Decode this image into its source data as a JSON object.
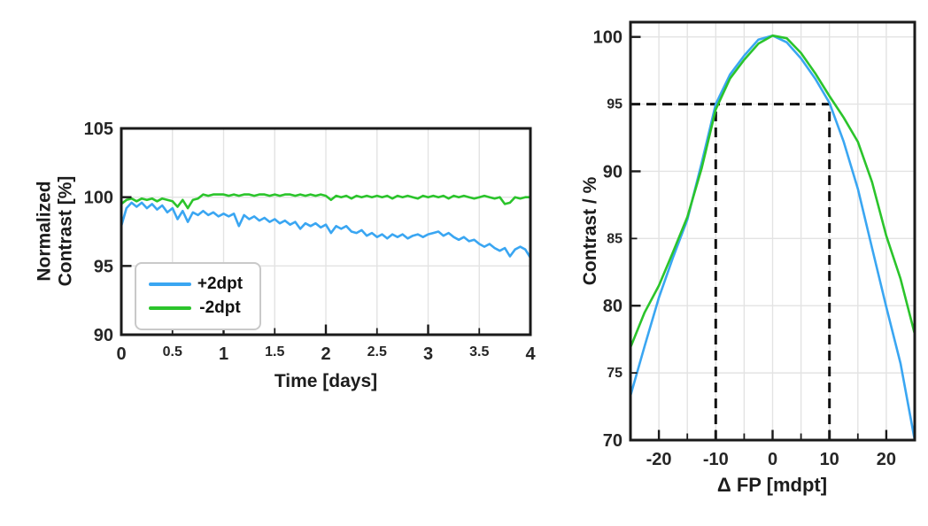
{
  "colors": {
    "blue": "#3aa6f2",
    "green": "#2bc42b",
    "grid": "#e3e3e3",
    "axis": "#1a1a1a",
    "tick_text": "#262626",
    "guide": "#111111",
    "background": "#ffffff"
  },
  "chart_data": [
    {
      "id": "left",
      "type": "line",
      "title": "",
      "xlabel": "Time [days]",
      "ylabel": "Normalized\nContrast [%]",
      "xlim": [
        0,
        4
      ],
      "ylim": [
        90,
        105
      ],
      "grid": true,
      "x_ticks": [
        {
          "v": 0,
          "l": "0",
          "m": true
        },
        {
          "v": 0.5,
          "l": "0.5",
          "m": false
        },
        {
          "v": 1,
          "l": "1",
          "m": true
        },
        {
          "v": 1.5,
          "l": "1.5",
          "m": false
        },
        {
          "v": 2,
          "l": "2",
          "m": true
        },
        {
          "v": 2.5,
          "l": "2.5",
          "m": false
        },
        {
          "v": 3,
          "l": "3",
          "m": true
        },
        {
          "v": 3.5,
          "l": "3.5",
          "m": false
        },
        {
          "v": 4,
          "l": "4",
          "m": true
        }
      ],
      "y_ticks": [
        {
          "v": 90,
          "l": "90",
          "m": true
        },
        {
          "v": 95,
          "l": "95",
          "m": true
        },
        {
          "v": 100,
          "l": "100",
          "m": true
        },
        {
          "v": 105,
          "l": "105",
          "m": true
        }
      ],
      "legend": {
        "position": "lower-left",
        "entries": [
          {
            "label": "+2dpt",
            "color": "#3aa6f2"
          },
          {
            "label": "-2dpt",
            "color": "#2bc42b"
          }
        ]
      },
      "series": [
        {
          "name": "+2dpt",
          "color": "#3aa6f2",
          "x": [
            0,
            0.05,
            0.1,
            0.15,
            0.2,
            0.25,
            0.3,
            0.35,
            0.4,
            0.45,
            0.5,
            0.55,
            0.6,
            0.65,
            0.7,
            0.75,
            0.8,
            0.85,
            0.9,
            0.95,
            1,
            1.05,
            1.1,
            1.15,
            1.2,
            1.25,
            1.3,
            1.35,
            1.4,
            1.45,
            1.5,
            1.55,
            1.6,
            1.65,
            1.7,
            1.75,
            1.8,
            1.85,
            1.9,
            1.95,
            2,
            2.05,
            2.1,
            2.15,
            2.2,
            2.25,
            2.3,
            2.35,
            2.4,
            2.45,
            2.5,
            2.55,
            2.6,
            2.65,
            2.7,
            2.75,
            2.8,
            2.85,
            2.9,
            2.95,
            3,
            3.05,
            3.1,
            3.15,
            3.2,
            3.25,
            3.3,
            3.35,
            3.4,
            3.45,
            3.5,
            3.55,
            3.6,
            3.65,
            3.7,
            3.75,
            3.8,
            3.85,
            3.9,
            3.95,
            4
          ],
          "y": [
            97.9,
            99.2,
            99.6,
            99.3,
            99.6,
            99.2,
            99.5,
            99.1,
            99.4,
            98.9,
            99.2,
            98.4,
            99,
            98.2,
            98.9,
            98.7,
            99,
            98.7,
            98.9,
            98.6,
            98.8,
            98.6,
            98.8,
            97.9,
            98.7,
            98.4,
            98.6,
            98.3,
            98.5,
            98.2,
            98.4,
            98.1,
            98.3,
            98,
            98.2,
            97.7,
            98.1,
            97.9,
            98.1,
            97.8,
            98,
            97.4,
            97.9,
            97.7,
            97.9,
            97.5,
            97.4,
            97.6,
            97.2,
            97.4,
            97.1,
            97.3,
            97,
            97.3,
            97.1,
            97.3,
            97,
            97.2,
            97.3,
            97.1,
            97.3,
            97.4,
            97.5,
            97.2,
            97.4,
            97.1,
            96.9,
            97.1,
            96.8,
            96.9,
            96.6,
            96.4,
            96.6,
            96.3,
            96.1,
            96.3,
            95.7,
            96.2,
            96.4,
            96.2,
            95.6
          ]
        },
        {
          "name": "-2dpt",
          "color": "#2bc42b",
          "x": [
            0,
            0.05,
            0.1,
            0.15,
            0.2,
            0.25,
            0.3,
            0.35,
            0.4,
            0.45,
            0.5,
            0.55,
            0.6,
            0.65,
            0.7,
            0.75,
            0.8,
            0.85,
            0.9,
            0.95,
            1,
            1.05,
            1.1,
            1.15,
            1.2,
            1.25,
            1.3,
            1.35,
            1.4,
            1.45,
            1.5,
            1.55,
            1.6,
            1.65,
            1.7,
            1.75,
            1.8,
            1.85,
            1.9,
            1.95,
            2,
            2.05,
            2.1,
            2.15,
            2.2,
            2.25,
            2.3,
            2.35,
            2.4,
            2.45,
            2.5,
            2.55,
            2.6,
            2.65,
            2.7,
            2.75,
            2.8,
            2.85,
            2.9,
            2.95,
            3,
            3.05,
            3.1,
            3.15,
            3.2,
            3.25,
            3.3,
            3.35,
            3.4,
            3.45,
            3.5,
            3.55,
            3.6,
            3.65,
            3.7,
            3.75,
            3.8,
            3.85,
            3.9,
            3.95,
            4
          ],
          "y": [
            99.5,
            99.8,
            99.9,
            99.7,
            99.9,
            99.8,
            99.9,
            99.7,
            99.9,
            99.8,
            99.7,
            99.3,
            99.8,
            99.2,
            99.8,
            99.9,
            100.2,
            100.1,
            100.2,
            100.2,
            100.2,
            100.1,
            100.2,
            100.1,
            100.2,
            100.2,
            100.1,
            100.2,
            100.2,
            100.1,
            100.2,
            100.1,
            100.2,
            100.2,
            100.1,
            100.2,
            100.1,
            100.2,
            100.1,
            100.2,
            100.1,
            99.8,
            100.1,
            100,
            100.1,
            99.9,
            100.1,
            100,
            100.1,
            100,
            100.1,
            100,
            100.1,
            99.9,
            100.1,
            100,
            100.1,
            100,
            99.9,
            100.1,
            100,
            100.1,
            100,
            100.1,
            99.9,
            100.1,
            100,
            100.1,
            100,
            99.9,
            100,
            100.1,
            100,
            99.9,
            100,
            99.5,
            99.6,
            100,
            99.9,
            100,
            100
          ]
        }
      ]
    },
    {
      "id": "right",
      "type": "line",
      "title": "",
      "xlabel": "Δ FP [mdpt]",
      "ylabel": "Contrast / %",
      "xlim": [
        -25,
        25
      ],
      "ylim": [
        70,
        101.1
      ],
      "grid": true,
      "x_ticks": [
        {
          "v": -20,
          "l": "-20",
          "m": true
        },
        {
          "v": -15,
          "l": "",
          "m": false
        },
        {
          "v": -10,
          "l": "-10",
          "m": true
        },
        {
          "v": -5,
          "l": "",
          "m": false
        },
        {
          "v": 0,
          "l": "0",
          "m": true
        },
        {
          "v": 5,
          "l": "",
          "m": false
        },
        {
          "v": 10,
          "l": "10",
          "m": true
        },
        {
          "v": 15,
          "l": "",
          "m": false
        },
        {
          "v": 20,
          "l": "20",
          "m": true
        }
      ],
      "y_ticks": [
        {
          "v": 70,
          "l": "70",
          "m": true
        },
        {
          "v": 75,
          "l": "75",
          "m": false
        },
        {
          "v": 80,
          "l": "80",
          "m": true
        },
        {
          "v": 85,
          "l": "85",
          "m": false
        },
        {
          "v": 90,
          "l": "90",
          "m": true
        },
        {
          "v": 95,
          "l": "95",
          "m": false
        },
        {
          "v": 100,
          "l": "100",
          "m": true
        }
      ],
      "guides": [
        {
          "orient": "h",
          "y": 95,
          "x0": -25,
          "x1": 10
        },
        {
          "orient": "v",
          "x": -10,
          "y0": 70,
          "y1": 95
        },
        {
          "orient": "v",
          "x": 10,
          "y0": 70,
          "y1": 95
        }
      ],
      "series": [
        {
          "name": "+2dpt",
          "color": "#3aa6f2",
          "x": [
            -25,
            -22.5,
            -20,
            -17.5,
            -15,
            -12.5,
            -10,
            -7.5,
            -5,
            -2.5,
            0,
            2.5,
            5,
            7.5,
            10,
            12.5,
            15,
            17.5,
            20,
            22.5,
            25
          ],
          "y": [
            73.3,
            77,
            80.6,
            83.6,
            86.4,
            90.6,
            95,
            97.2,
            98.6,
            99.8,
            100.1,
            99.6,
            98.4,
            96.9,
            95.1,
            92.2,
            88.7,
            84.3,
            79.9,
            75.7,
            70
          ]
        },
        {
          "name": "-2dpt",
          "color": "#2bc42b",
          "x": [
            -25,
            -22.5,
            -20,
            -17.5,
            -15,
            -12.5,
            -10,
            -7.5,
            -5,
            -2.5,
            0,
            2.5,
            5,
            7.5,
            10,
            12.5,
            15,
            17.5,
            20,
            22.5,
            25
          ],
          "y": [
            76.9,
            79.5,
            81.5,
            84,
            86.6,
            90.2,
            94.6,
            96.9,
            98.3,
            99.5,
            100.1,
            99.9,
            98.8,
            97.3,
            95.6,
            94,
            92.2,
            89.2,
            85.2,
            82,
            77.9
          ]
        }
      ]
    }
  ]
}
